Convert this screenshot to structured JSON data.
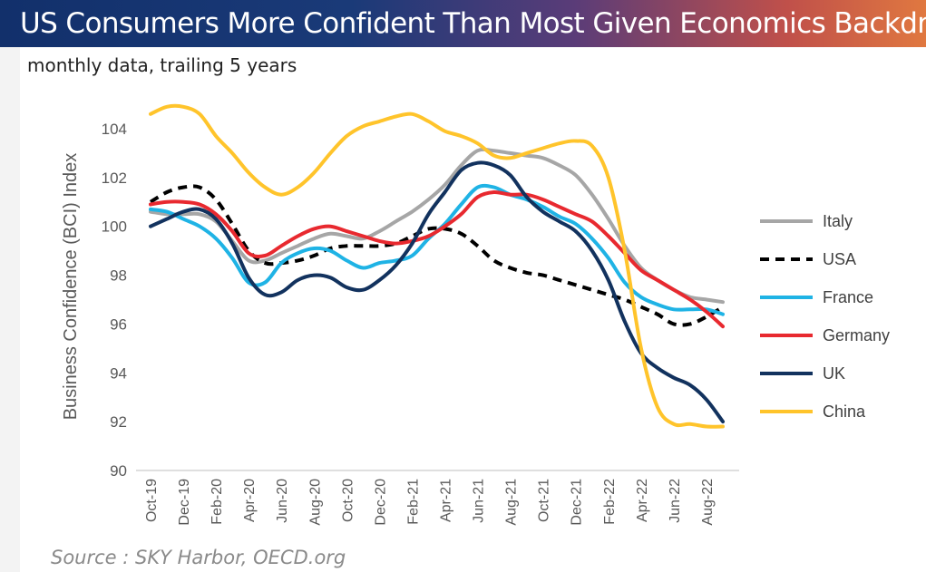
{
  "banner": {
    "title": "US Consumers More Confident Than Most Given Economics Backdrop"
  },
  "subtitle": "monthly data, trailing 5 years",
  "source": "Source : SKY Harbor, OECD.org",
  "chart_data": {
    "type": "line",
    "ylabel": "Business Confidence (BCI) Index",
    "ylim": [
      90,
      104
    ],
    "yticks": [
      90,
      92,
      94,
      96,
      98,
      100,
      102,
      104
    ],
    "x": [
      "Oct-19",
      "Nov-19",
      "Dec-19",
      "Jan-20",
      "Feb-20",
      "Mar-20",
      "Apr-20",
      "May-20",
      "Jun-20",
      "Jul-20",
      "Aug-20",
      "Sep-20",
      "Oct-20",
      "Nov-20",
      "Dec-20",
      "Jan-21",
      "Feb-21",
      "Mar-21",
      "Apr-21",
      "May-21",
      "Jun-21",
      "Jul-21",
      "Aug-21",
      "Sep-21",
      "Oct-21",
      "Nov-21",
      "Dec-21",
      "Jan-22",
      "Feb-22",
      "Mar-22",
      "Apr-22",
      "May-22",
      "Jun-22",
      "Jul-22",
      "Aug-22",
      "Sep-22"
    ],
    "xtick_labels": [
      "Oct-19",
      "Dec-19",
      "Feb-20",
      "Apr-20",
      "Jun-20",
      "Aug-20",
      "Oct-20",
      "Dec-20",
      "Feb-21",
      "Apr-21",
      "Jun-21",
      "Aug-21",
      "Oct-21",
      "Dec-21",
      "Feb-22",
      "Apr-22",
      "Jun-22",
      "Aug-22"
    ],
    "legend_position": "right",
    "grid": "horizontal",
    "series": [
      {
        "name": "Italy",
        "color": "#a6a6a6",
        "dash": false,
        "values": [
          100.6,
          100.5,
          100.5,
          100.5,
          100.2,
          99.4,
          98.6,
          98.6,
          98.9,
          99.2,
          99.5,
          99.7,
          99.6,
          99.5,
          99.8,
          100.2,
          100.6,
          101.1,
          101.7,
          102.5,
          103.1,
          103.1,
          103.0,
          102.9,
          102.8,
          102.5,
          102.1,
          101.3,
          100.3,
          99.2,
          98.3,
          97.8,
          97.4,
          97.1,
          97.0,
          96.9
        ]
      },
      {
        "name": "USA",
        "color": "#000000",
        "dash": true,
        "values": [
          101.0,
          101.4,
          101.6,
          101.6,
          101.1,
          100.1,
          99.0,
          98.5,
          98.5,
          98.6,
          98.8,
          99.1,
          99.2,
          99.2,
          99.2,
          99.3,
          99.6,
          99.9,
          99.9,
          99.7,
          99.2,
          98.6,
          98.3,
          98.1,
          98.0,
          97.8,
          97.6,
          97.4,
          97.2,
          97.0,
          96.7,
          96.4,
          96.0,
          96.0,
          96.3,
          96.7
        ]
      },
      {
        "name": "France",
        "color": "#1fb3e5",
        "dash": false,
        "values": [
          100.7,
          100.6,
          100.3,
          100.0,
          99.5,
          98.7,
          97.7,
          97.7,
          98.5,
          98.9,
          99.1,
          99.0,
          98.6,
          98.3,
          98.5,
          98.6,
          98.8,
          99.5,
          100.1,
          100.9,
          101.6,
          101.6,
          101.3,
          101.1,
          100.8,
          100.4,
          100.1,
          99.5,
          98.7,
          97.7,
          97.1,
          96.8,
          96.6,
          96.6,
          96.6,
          96.4
        ]
      },
      {
        "name": "Germany",
        "color": "#e8292f",
        "dash": false,
        "values": [
          100.9,
          101.0,
          101.0,
          100.9,
          100.5,
          99.8,
          98.9,
          98.8,
          99.2,
          99.6,
          99.9,
          100.0,
          99.8,
          99.6,
          99.4,
          99.3,
          99.4,
          99.6,
          100.0,
          100.5,
          101.2,
          101.4,
          101.3,
          101.3,
          101.1,
          100.8,
          100.5,
          100.2,
          99.6,
          98.9,
          98.2,
          97.8,
          97.4,
          97.0,
          96.5,
          95.9
        ]
      },
      {
        "name": "UK",
        "color": "#12325e",
        "dash": false,
        "values": [
          100.0,
          100.3,
          100.6,
          100.7,
          100.3,
          99.3,
          97.9,
          97.2,
          97.3,
          97.8,
          98.0,
          97.9,
          97.5,
          97.4,
          97.8,
          98.4,
          99.3,
          100.5,
          101.4,
          102.3,
          102.6,
          102.5,
          102.1,
          101.2,
          100.6,
          100.2,
          99.8,
          99.0,
          97.8,
          96.1,
          94.8,
          94.2,
          93.8,
          93.5,
          92.9,
          92.0
        ]
      },
      {
        "name": "China",
        "color": "#ffc42b",
        "dash": false,
        "values": [
          104.6,
          104.9,
          104.9,
          104.6,
          103.7,
          103.0,
          102.2,
          101.6,
          101.3,
          101.6,
          102.2,
          103.0,
          103.7,
          104.1,
          104.3,
          104.5,
          104.6,
          104.3,
          103.9,
          103.7,
          103.4,
          102.9,
          102.8,
          103.0,
          103.2,
          103.4,
          103.5,
          103.3,
          102.0,
          99.0,
          95.0,
          92.6,
          91.9,
          91.9,
          91.8,
          91.8
        ]
      }
    ]
  }
}
